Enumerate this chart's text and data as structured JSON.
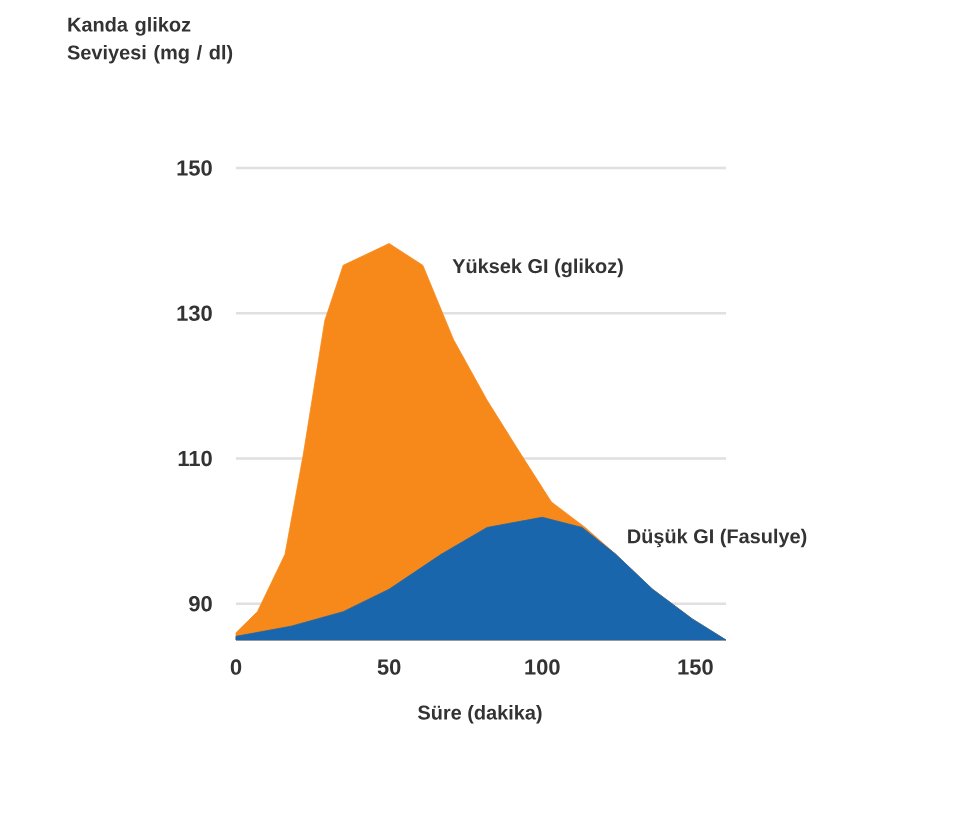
{
  "chart_data": {
    "type": "area",
    "xlabel": "Süre (dakika)",
    "ylabel": "Kanda glikoz Seviyesi (mg / dl)",
    "series": [
      {
        "name": "Yüksek GI (glikoz)",
        "color": "#f7891a",
        "x": [
          0,
          7,
          16,
          22,
          29,
          35,
          50,
          61,
          71,
          82,
          93,
          103,
          114,
          124,
          136,
          149,
          160
        ],
        "values": [
          86,
          88.9,
          96.8,
          110.6,
          129,
          136.6,
          139.6,
          136.6,
          126.4,
          118,
          110.6,
          104,
          100.5,
          96.8,
          92,
          87.9,
          85
        ]
      },
      {
        "name": "Düşük GI (Fasulye)",
        "color": "#1a66ad",
        "x": [
          0,
          18,
          35,
          50,
          67,
          82,
          100,
          113,
          124,
          136,
          149,
          160
        ],
        "values": [
          85.5,
          86.9,
          88.9,
          92,
          96.8,
          100.5,
          101.9,
          100.5,
          96.8,
          92,
          87.9,
          85
        ]
      }
    ],
    "xlim": [
      0,
      160
    ],
    "ylim": [
      85,
      150
    ],
    "xticks": [
      0,
      50,
      100,
      150
    ],
    "yticks": [
      90,
      110,
      130,
      150
    ],
    "grid": "y"
  }
}
